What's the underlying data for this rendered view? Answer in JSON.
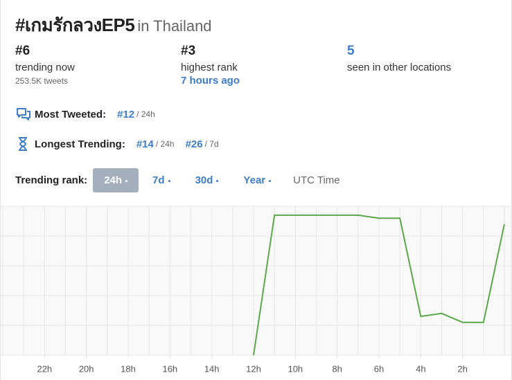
{
  "header": {
    "title": "#เกมรักลวงEP5",
    "location": "in Thailand"
  },
  "stats": [
    {
      "value": "#6",
      "label": "trending now",
      "detail": "253.5K tweets"
    },
    {
      "value": "#3",
      "label": "highest rank",
      "detail": "7 hours ago"
    },
    {
      "value": "5",
      "label": "seen in other locations"
    }
  ],
  "most_tweeted": {
    "label": "Most Tweeted:",
    "rank": "#12",
    "period": "/ 24h"
  },
  "longest_trending": {
    "label": "Longest Trending:",
    "ranks": [
      {
        "rank": "#14",
        "period": "/ 24h"
      },
      {
        "rank": "#26",
        "period": "/ 7d"
      }
    ]
  },
  "range": {
    "label": "Trending rank:",
    "tabs": [
      "24h",
      "7d",
      "30d",
      "Year"
    ],
    "active": 0,
    "timezone": "UTC Time"
  },
  "chart_data": {
    "type": "line",
    "x": [
      12,
      11,
      10,
      9,
      8,
      7,
      6,
      5,
      4,
      3,
      2,
      1,
      0
    ],
    "series": [
      {
        "color": "#5aa84a",
        "values": [
          0,
          4.7,
          4.7,
          4.7,
          4.7,
          4.7,
          4.6,
          4.6,
          1.3,
          1.4,
          1.1,
          1.1,
          4.4
        ]
      }
    ],
    "xlim": [
      24,
      0
    ],
    "xticks": [
      {
        "value": 22,
        "label": "22h"
      },
      {
        "value": 20,
        "label": "20h"
      },
      {
        "value": 18,
        "label": "18h"
      },
      {
        "value": 16,
        "label": "16h"
      },
      {
        "value": 14,
        "label": "14h"
      },
      {
        "value": 12,
        "label": "12h"
      },
      {
        "value": 10,
        "label": "10h"
      },
      {
        "value": 8,
        "label": "8h"
      },
      {
        "value": 6,
        "label": "6h"
      },
      {
        "value": 4,
        "label": "4h"
      },
      {
        "value": 2,
        "label": "2h"
      }
    ],
    "ylim": [
      0,
      5
    ],
    "yticks": [
      0,
      1,
      2,
      3,
      4,
      5
    ],
    "grid": true
  }
}
